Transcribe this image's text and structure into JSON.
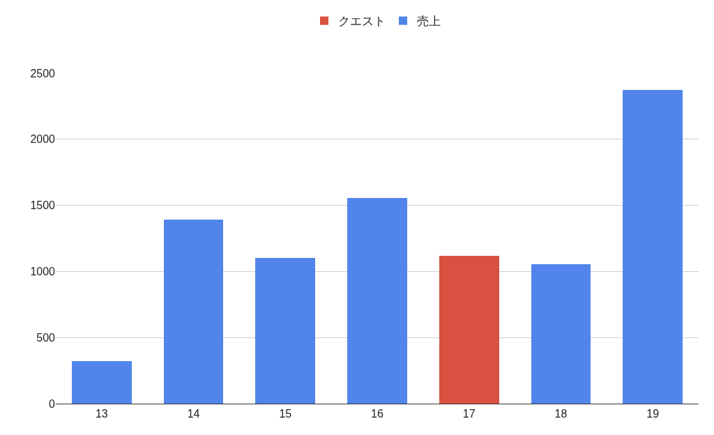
{
  "chart_data": {
    "type": "bar",
    "stacked": true,
    "categories": [
      "13",
      "14",
      "15",
      "16",
      "17",
      "18",
      "19"
    ],
    "series": [
      {
        "name": "クエスト",
        "color": "#d95140",
        "values": [
          null,
          null,
          null,
          null,
          1120,
          null,
          null
        ]
      },
      {
        "name": "売上",
        "color": "#5185ec",
        "values": [
          320,
          1390,
          1100,
          1555,
          null,
          1055,
          2375
        ]
      }
    ],
    "ylim": [
      0,
      2500
    ],
    "yticks": [
      0,
      500,
      1000,
      1500,
      2000,
      2500
    ],
    "grid": "y",
    "legend": "top"
  }
}
